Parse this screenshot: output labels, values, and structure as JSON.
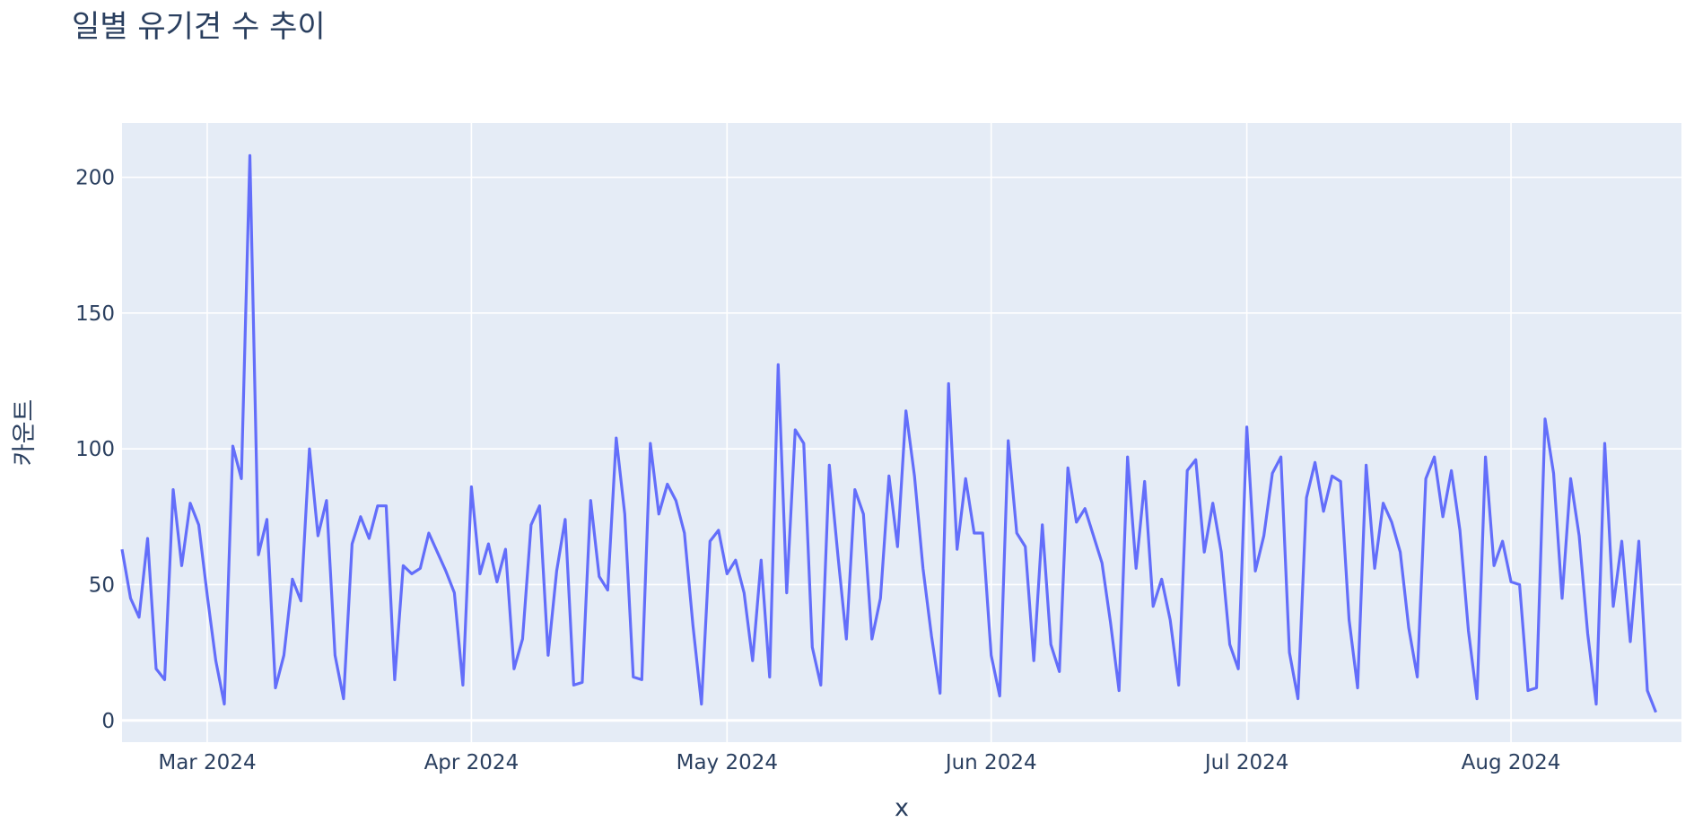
{
  "chart_data": {
    "type": "line",
    "title": "일별 유기견 수 추이",
    "xlabel": "x",
    "ylabel": "카운트",
    "x_start": "2024-02-20",
    "x_end": "2024-08-21",
    "x_ticks": [
      "Mar 2024",
      "Apr 2024",
      "May 2024",
      "Jun 2024",
      "Jul 2024",
      "Aug 2024"
    ],
    "y_ticks": [
      0,
      50,
      100,
      150,
      200
    ],
    "ylim": [
      -8,
      220
    ],
    "grid": true,
    "legend": "none",
    "colors": {
      "line": "#636efa",
      "plot_bg": "#e5ecf6",
      "grid": "#ffffff",
      "text": "#2a3f5f"
    },
    "series": [
      {
        "values": [
          63,
          45,
          38,
          67,
          19,
          15,
          85,
          57,
          80,
          72,
          46,
          22,
          6,
          101,
          89,
          208,
          61,
          74,
          12,
          24,
          52,
          44,
          100,
          68,
          81,
          24,
          8,
          65,
          75,
          67,
          79,
          79,
          15,
          57,
          54,
          56,
          69,
          62,
          55,
          47,
          13,
          86,
          54,
          65,
          51,
          63,
          19,
          30,
          72,
          79,
          24,
          55,
          74,
          13,
          14,
          81,
          53,
          48,
          104,
          76,
          16,
          15,
          102,
          76,
          87,
          81,
          69,
          35,
          6,
          66,
          70,
          54,
          59,
          47,
          22,
          59,
          16,
          131,
          47,
          107,
          102,
          27,
          13,
          94,
          61,
          30,
          85,
          76,
          30,
          45,
          90,
          64,
          114,
          90,
          56,
          31,
          10,
          124,
          63,
          89,
          69,
          69,
          24,
          9,
          103,
          69,
          64,
          22,
          72,
          28,
          18,
          93,
          73,
          78,
          68,
          58,
          36,
          11,
          97,
          56,
          88,
          42,
          52,
          37,
          13,
          92,
          96,
          62,
          80,
          62,
          28,
          19,
          108,
          55,
          68,
          91,
          97,
          25,
          8,
          82,
          95,
          77,
          90,
          88,
          37,
          12,
          94,
          56,
          80,
          73,
          62,
          34,
          16,
          89,
          97,
          75,
          92,
          70,
          33,
          8,
          97,
          57,
          66,
          51,
          50,
          11,
          12,
          111,
          91,
          45,
          89,
          68,
          32,
          6,
          102,
          42,
          66,
          29,
          66,
          11,
          3
        ]
      }
    ]
  }
}
